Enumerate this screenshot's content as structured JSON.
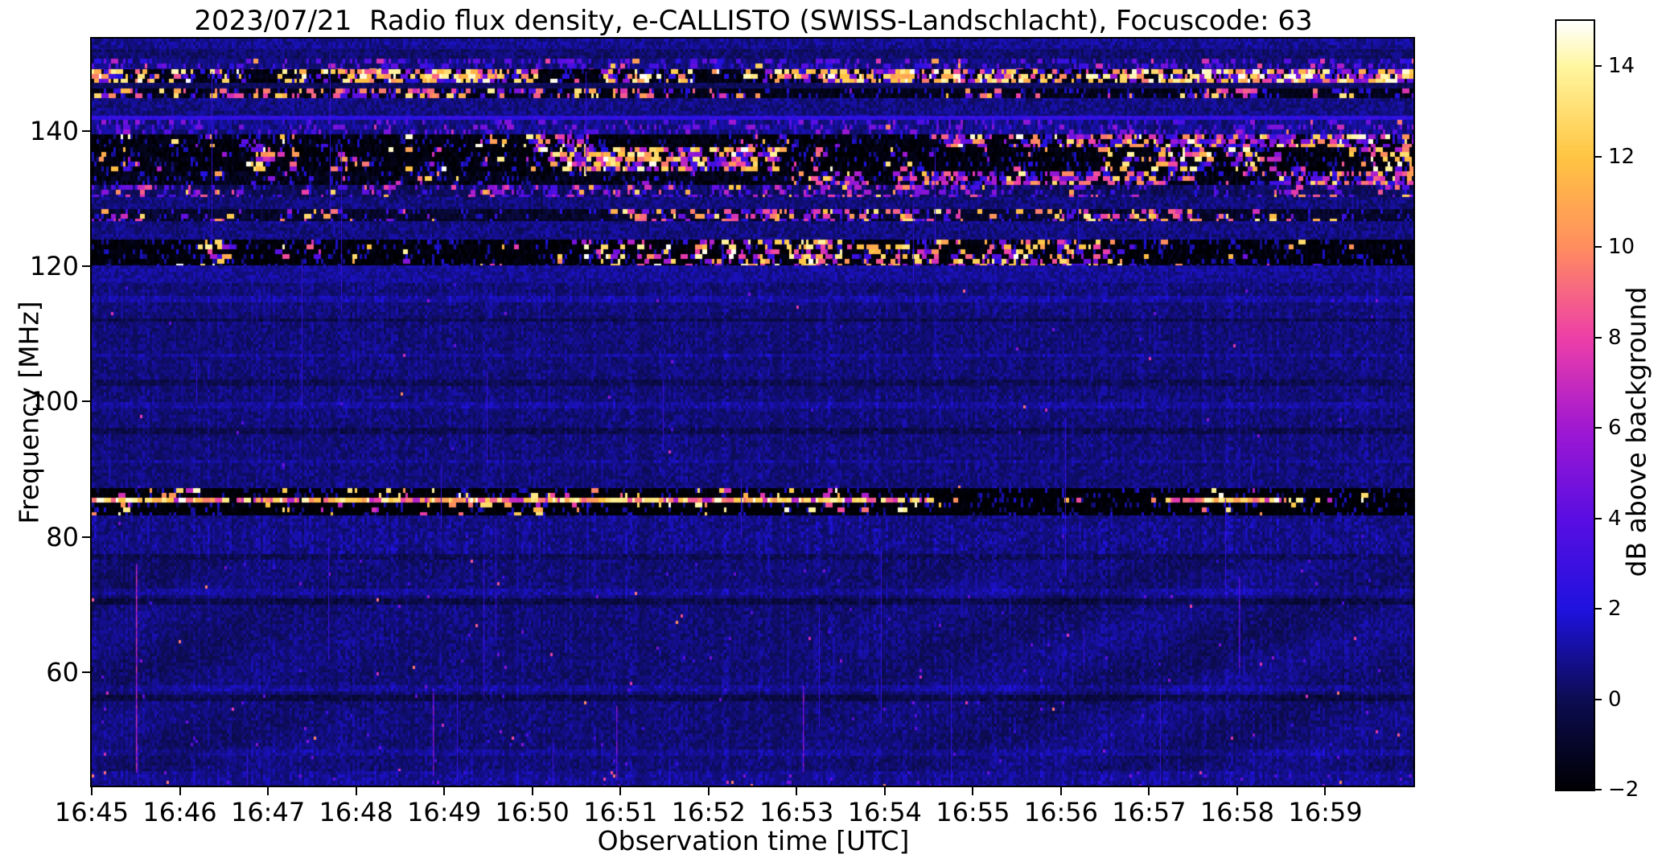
{
  "chart_data": {
    "type": "heatmap",
    "subtype": "radio-spectrogram",
    "title": "2023/07/21  Radio flux density, e-CALLISTO (SWISS-Landschlacht), Focuscode: 63",
    "xlabel": "Observation time [UTC]",
    "ylabel": "Frequency [MHz]",
    "colorbar_label": "dB above background",
    "x_start": "16:45",
    "x_end": "17:00",
    "xlim_minutes": [
      0,
      15
    ],
    "xticklabels": [
      "16:45",
      "16:46",
      "16:47",
      "16:48",
      "16:49",
      "16:50",
      "16:51",
      "16:52",
      "16:53",
      "16:54",
      "16:55",
      "16:56",
      "16:57",
      "16:58",
      "16:59"
    ],
    "ylim_mhz": [
      43.2,
      153.7
    ],
    "yticks": [
      {
        "label": "140",
        "value": 140
      },
      {
        "label": "120",
        "value": 120
      },
      {
        "label": "100",
        "value": 100
      },
      {
        "label": "80",
        "value": 80
      },
      {
        "label": "60",
        "value": 60
      }
    ],
    "clim_db": [
      -2,
      15
    ],
    "cbar_ticks": [
      {
        "label": "14",
        "value": 14
      },
      {
        "label": "12",
        "value": 12
      },
      {
        "label": "10",
        "value": 10
      },
      {
        "label": "8",
        "value": 8
      },
      {
        "label": "6",
        "value": 6
      },
      {
        "label": "4",
        "value": 4
      },
      {
        "label": "2",
        "value": 2
      },
      {
        "label": "0",
        "value": 0
      },
      {
        "label": "−2",
        "value": -2
      }
    ],
    "colormap": [
      {
        "v": -2,
        "c": "#000003"
      },
      {
        "v": 0,
        "c": "#0c0c52"
      },
      {
        "v": 2,
        "c": "#1f12df"
      },
      {
        "v": 4,
        "c": "#5a0ee2"
      },
      {
        "v": 6,
        "c": "#a018d2"
      },
      {
        "v": 8,
        "c": "#ee3fa8"
      },
      {
        "v": 10,
        "c": "#ff8d5f"
      },
      {
        "v": 12,
        "c": "#ffc542"
      },
      {
        "v": 14,
        "c": "#fff6a0"
      },
      {
        "v": 15,
        "c": "#ffffff"
      }
    ],
    "seed": 20230721,
    "bands": [
      {
        "f1": 153.7,
        "f0": 152.2,
        "kind": "noise",
        "base": 0.9,
        "noise": 0.8
      },
      {
        "f1": 152.2,
        "f0": 150.7,
        "kind": "noise",
        "base": 0.4,
        "noise": 0.7
      },
      {
        "f1": 150.7,
        "f0": 149.2,
        "kind": "speckle",
        "base": 0.6,
        "noise": 0.7,
        "density": 0.1,
        "palette": [
          [
            2,
            5,
            0.8
          ],
          [
            6,
            9,
            0.15
          ],
          [
            10,
            13,
            0.05
          ]
        ]
      },
      {
        "f1": 149.2,
        "f0": 147.1,
        "kind": "speckle",
        "base": -1.6,
        "noise": 0.5,
        "density": 0.42,
        "cluster": true,
        "palette": [
          [
            2,
            6,
            0.3
          ],
          [
            8,
            11,
            0.2
          ],
          [
            11,
            15,
            0.5
          ]
        ]
      },
      {
        "f1": 147.1,
        "f0": 146.3,
        "kind": "noise",
        "base": 0.15,
        "noise": 0.5
      },
      {
        "f1": 146.3,
        "f0": 144.9,
        "kind": "speckle",
        "base": -1.4,
        "noise": 0.5,
        "density": 0.2,
        "cluster": true,
        "palette": [
          [
            2,
            5,
            0.3
          ],
          [
            7,
            11,
            0.55
          ],
          [
            11,
            14,
            0.15
          ]
        ]
      },
      {
        "f1": 144.9,
        "f0": 142.3,
        "kind": "noise",
        "base": 0.7,
        "noise": 0.8
      },
      {
        "f1": 142.3,
        "f0": 141.7,
        "kind": "noise",
        "base": 2.6,
        "noise": 0.5
      },
      {
        "f1": 141.7,
        "f0": 139.5,
        "kind": "speckle",
        "base": 0.8,
        "noise": 0.8,
        "density": 0.07,
        "palette": [
          [
            3,
            6,
            0.9
          ],
          [
            7,
            10,
            0.1
          ]
        ]
      },
      {
        "f1": 139.5,
        "f0": 137.7,
        "kind": "speckle",
        "base": -1.7,
        "noise": 0.6,
        "density": 0.33,
        "cluster": true,
        "palette": [
          [
            2,
            6,
            0.45
          ],
          [
            6,
            10,
            0.25
          ],
          [
            10,
            15,
            0.3
          ]
        ]
      },
      {
        "f1": 137.7,
        "f0": 134.1,
        "kind": "speckle",
        "base": -1.8,
        "noise": 0.6,
        "density": 0.4,
        "cluster": true,
        "palette": [
          [
            2,
            6,
            0.3
          ],
          [
            6,
            10,
            0.25
          ],
          [
            10,
            15,
            0.45
          ]
        ]
      },
      {
        "f1": 134.1,
        "f0": 132.1,
        "kind": "speckle",
        "base": -1.4,
        "noise": 0.7,
        "density": 0.28,
        "cluster": true,
        "palette": [
          [
            2,
            6,
            0.4
          ],
          [
            6,
            10,
            0.4
          ],
          [
            10,
            14,
            0.2
          ]
        ]
      },
      {
        "f1": 132.1,
        "f0": 130.3,
        "kind": "speckle",
        "base": 0.2,
        "noise": 0.8,
        "density": 0.16,
        "cluster": true,
        "palette": [
          [
            3,
            6,
            0.5
          ],
          [
            6,
            9,
            0.35
          ],
          [
            9,
            13,
            0.15
          ]
        ]
      },
      {
        "f1": 130.3,
        "f0": 128.5,
        "kind": "noise",
        "base": 0.6,
        "noise": 0.8
      },
      {
        "f1": 128.5,
        "f0": 126.7,
        "kind": "speckle",
        "base": -0.9,
        "noise": 0.7,
        "density": 0.14,
        "cluster": true,
        "palette": [
          [
            3,
            6,
            0.3
          ],
          [
            7,
            12,
            0.55
          ],
          [
            12,
            14,
            0.15
          ]
        ]
      },
      {
        "f1": 126.7,
        "f0": 124.0,
        "kind": "noise",
        "base": 0.7,
        "noise": 0.8
      },
      {
        "f1": 124.0,
        "f0": 120.2,
        "kind": "speckle",
        "base": -1.8,
        "noise": 0.5,
        "density": 0.22,
        "cluster": true,
        "palette": [
          [
            2,
            6,
            0.25
          ],
          [
            6,
            9,
            0.25
          ],
          [
            10,
            15,
            0.5
          ]
        ]
      },
      {
        "f1": 120.2,
        "f0": 117.6,
        "kind": "noise",
        "base": 1.0,
        "noise": 0.7
      },
      {
        "f1": 117.6,
        "f0": 87.2,
        "kind": "quiet",
        "base": 0.6,
        "noise": 0.6,
        "dots": 0.0015,
        "stripes": [
          [
            115.8,
            114.8,
            0.6
          ],
          [
            112.5,
            111.8,
            -0.7
          ],
          [
            107.3,
            106.5,
            0.5
          ],
          [
            103.2,
            102.5,
            -0.6
          ],
          [
            99.8,
            99.1,
            0.5
          ],
          [
            95.9,
            95.2,
            -0.7
          ],
          [
            91.5,
            90.9,
            0.4
          ]
        ]
      },
      {
        "f1": 87.2,
        "f0": 83.2,
        "kind": "speckle",
        "base": -1.9,
        "noise": 0.4,
        "density": 0.3,
        "cluster": true,
        "core": 85.4,
        "palette": [
          [
            6,
            9,
            0.25
          ],
          [
            9,
            12,
            0.3
          ],
          [
            12,
            15,
            0.45
          ]
        ]
      },
      {
        "f1": 83.2,
        "f0": 76.6,
        "kind": "quiet",
        "base": 0.8,
        "noise": 0.7,
        "dots": 0.001,
        "stripes": [
          [
            77.6,
            76.8,
            -0.7
          ]
        ]
      },
      {
        "f1": 76.6,
        "f0": 45.4,
        "kind": "quiet",
        "base": 0.55,
        "noise": 0.6,
        "ripple": true,
        "dots": 0.004,
        "stripes": [
          [
            72.2,
            71.3,
            0.5
          ],
          [
            70.8,
            69.8,
            -0.8
          ],
          [
            58.3,
            57.3,
            0.5
          ],
          [
            56.8,
            55.8,
            -0.8
          ],
          [
            48.5,
            47.8,
            0.4
          ]
        ]
      },
      {
        "f1": 45.4,
        "f0": 43.2,
        "kind": "quiet",
        "base": 0.95,
        "noise": 0.6,
        "dots": 0.02
      }
    ],
    "vlines": [
      {
        "t": 0.5,
        "f1": 76.0,
        "f0": 45.5,
        "v": 6.5
      },
      {
        "t": 3.87,
        "f1": 57.0,
        "f0": 45.0,
        "v": 5.0
      },
      {
        "t": 5.95,
        "f1": 55.0,
        "f0": 44.0,
        "v": 4.5
      },
      {
        "t": 8.07,
        "f1": 58.0,
        "f0": 45.5,
        "v": 5.0
      },
      {
        "t": 13.02,
        "f1": 74.0,
        "f0": 60.0,
        "v": 3.5
      }
    ],
    "hairlines": {
      "count": 30,
      "vmin": 2.0,
      "vmax": 3.4
    }
  }
}
